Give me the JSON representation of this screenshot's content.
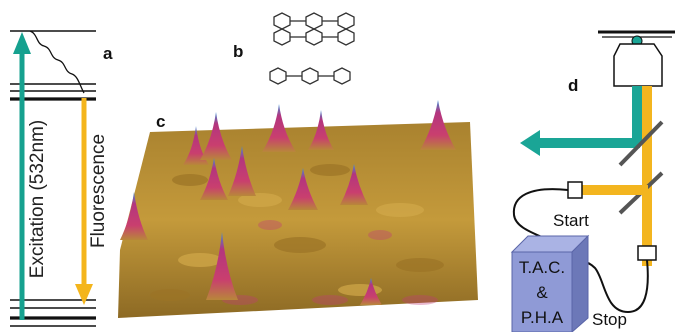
{
  "panels": {
    "a": "a",
    "b": "b",
    "c": "c",
    "d": "d"
  },
  "energy_diagram": {
    "excitation_label": "Excitation (532nm)",
    "fluorescence_label": "Fluorescence",
    "colors": {
      "excitation": "#16a18f",
      "fluorescence": "#f4b51c",
      "levels": "#111111"
    }
  },
  "setup": {
    "start_label": "Start",
    "stop_label": "Stop",
    "box_lines": [
      "T.A.C.",
      "&",
      "P.H.A"
    ],
    "colors": {
      "beam_green": "#1aa596",
      "beam_yellow": "#f3b51f",
      "box_front": "#8f9ad6",
      "box_side": "#6c78b8"
    }
  },
  "afm": {
    "colors": {
      "base": "#b58a2e",
      "peak": "#c23a7a",
      "tip": "#3a8fd0"
    }
  }
}
